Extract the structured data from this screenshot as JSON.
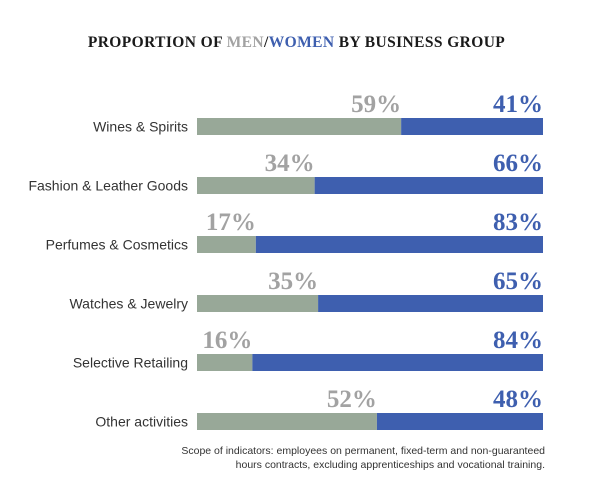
{
  "title": {
    "prefix": "PROPORTION OF ",
    "men": "MEN",
    "separator": "/",
    "women": "WOMEN",
    "suffix": " BY BUSINESS GROUP"
  },
  "colors": {
    "men": "#98A898",
    "women": "#3E5FAF",
    "men_text": "#A2A2A2",
    "women_text": "#3E5FAF"
  },
  "chart_data": {
    "type": "bar",
    "orientation": "horizontal",
    "stacked": "100%",
    "categories": [
      "Wines & Spirits",
      "Fashion & Leather Goods",
      "Perfumes & Cosmetics",
      "Watches & Jewelry",
      "Selective Retailing",
      "Other activities"
    ],
    "series": [
      {
        "name": "MEN",
        "values": [
          59,
          34,
          17,
          35,
          16,
          52
        ],
        "labels": [
          "59%",
          "34%",
          "17%",
          "35%",
          "16%",
          "52%"
        ]
      },
      {
        "name": "WOMEN",
        "values": [
          41,
          66,
          83,
          65,
          84,
          48
        ],
        "labels": [
          "41%",
          "66%",
          "83%",
          "65%",
          "84%",
          "48%"
        ]
      }
    ],
    "title": "PROPORTION OF MEN/WOMEN BY BUSINESS GROUP",
    "xlim": [
      0,
      100
    ],
    "grid": false,
    "legend": "none"
  },
  "footnote": {
    "line1": "Scope of indicators: employees on permanent, fixed-term and non-guaranteed",
    "line2": "hours contracts, excluding apprenticeships and vocational training."
  }
}
